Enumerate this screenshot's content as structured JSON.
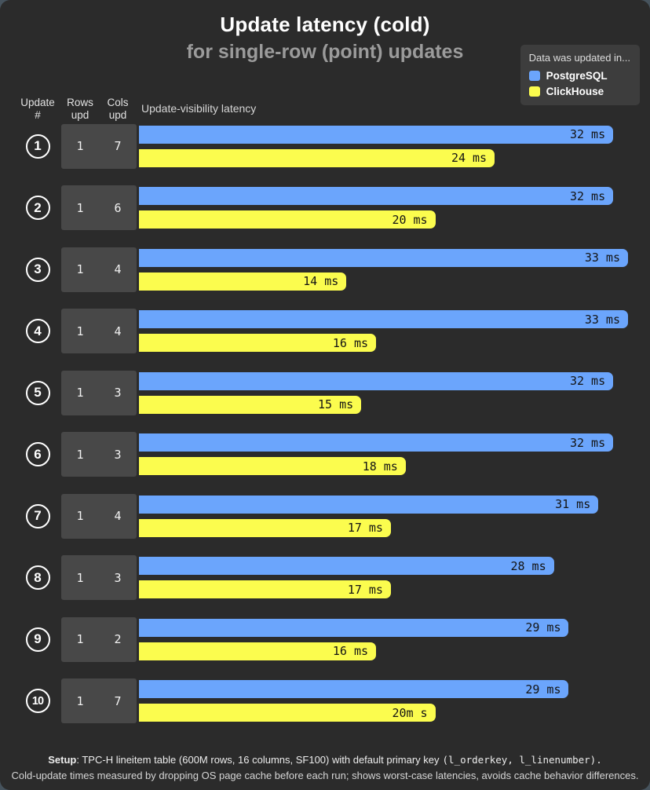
{
  "title": "Update latency (cold)",
  "subtitle": "for single-row (point) updates",
  "colors": {
    "postgresql": "#6ba5fc",
    "clickhouse": "#fbfc4e",
    "card_background": "#2b2b2b",
    "cell_background": "#484848",
    "legend_background": "#3d3d3d",
    "outer_background": "#46535d"
  },
  "legend": {
    "title": "Data was updated in...",
    "items": [
      {
        "label": "PostgreSQL",
        "color": "#6ba5fc"
      },
      {
        "label": "ClickHouse",
        "color": "#fbfc4e"
      }
    ]
  },
  "columns": {
    "update": [
      "Update",
      "#"
    ],
    "rows": [
      "Rows",
      "upd"
    ],
    "cols": [
      "Cols",
      "upd"
    ],
    "latency": "Update-visibility latency"
  },
  "rows": [
    {
      "num": "1",
      "rows_upd": "1",
      "cols_upd": "7",
      "pg_value": 32,
      "pg_label": "32 ms",
      "ch_value": 24,
      "ch_label": "24 ms"
    },
    {
      "num": "2",
      "rows_upd": "1",
      "cols_upd": "6",
      "pg_value": 32,
      "pg_label": "32 ms",
      "ch_value": 20,
      "ch_label": "20 ms"
    },
    {
      "num": "3",
      "rows_upd": "1",
      "cols_upd": "4",
      "pg_value": 33,
      "pg_label": "33 ms",
      "ch_value": 14,
      "ch_label": "14 ms"
    },
    {
      "num": "4",
      "rows_upd": "1",
      "cols_upd": "4",
      "pg_value": 33,
      "pg_label": "33 ms",
      "ch_value": 16,
      "ch_label": "16 ms"
    },
    {
      "num": "5",
      "rows_upd": "1",
      "cols_upd": "3",
      "pg_value": 32,
      "pg_label": "32 ms",
      "ch_value": 15,
      "ch_label": "15 ms"
    },
    {
      "num": "6",
      "rows_upd": "1",
      "cols_upd": "3",
      "pg_value": 32,
      "pg_label": "32 ms",
      "ch_value": 18,
      "ch_label": "18 ms"
    },
    {
      "num": "7",
      "rows_upd": "1",
      "cols_upd": "4",
      "pg_value": 31,
      "pg_label": "31 ms",
      "ch_value": 17,
      "ch_label": "17 ms"
    },
    {
      "num": "8",
      "rows_upd": "1",
      "cols_upd": "3",
      "pg_value": 28,
      "pg_label": "28 ms",
      "ch_value": 17,
      "ch_label": "17 ms"
    },
    {
      "num": "9",
      "rows_upd": "1",
      "cols_upd": "2",
      "pg_value": 29,
      "pg_label": "29 ms",
      "ch_value": 16,
      "ch_label": "16 ms"
    },
    {
      "num": "10",
      "rows_upd": "1",
      "cols_upd": "7",
      "pg_value": 29,
      "pg_label": "29 ms",
      "ch_value": 20,
      "ch_label": "20m s"
    }
  ],
  "chart_data": {
    "type": "bar",
    "orientation": "horizontal",
    "title": "Update latency (cold)",
    "subtitle": "for single-row (point) updates",
    "unit": "ms",
    "xlim": [
      0,
      33
    ],
    "grid": false,
    "legend_position": "top-right",
    "categories": [
      "1",
      "2",
      "3",
      "4",
      "5",
      "6",
      "7",
      "8",
      "9",
      "10"
    ],
    "series": [
      {
        "name": "PostgreSQL",
        "color": "#6ba5fc",
        "values": [
          32,
          32,
          33,
          33,
          32,
          32,
          31,
          28,
          29,
          29
        ]
      },
      {
        "name": "ClickHouse",
        "color": "#fbfc4e",
        "values": [
          24,
          20,
          14,
          16,
          15,
          18,
          17,
          17,
          16,
          20
        ]
      }
    ],
    "bar_labels": {
      "PostgreSQL": [
        "32 ms",
        "32 ms",
        "33 ms",
        "33 ms",
        "32 ms",
        "32 ms",
        "31 ms",
        "28 ms",
        "29 ms",
        "29 ms"
      ],
      "ClickHouse": [
        "24 ms",
        "20 ms",
        "14 ms",
        "16 ms",
        "15 ms",
        "18 ms",
        "17 ms",
        "17 ms",
        "16 ms",
        "20m s"
      ]
    },
    "rows_upd": [
      1,
      1,
      1,
      1,
      1,
      1,
      1,
      1,
      1,
      1
    ],
    "cols_upd": [
      7,
      6,
      4,
      4,
      3,
      3,
      4,
      3,
      2,
      7
    ]
  },
  "footer": {
    "setup_label": "Setup",
    "setup_text": ": TPC-H lineitem table (600M rows, 16 columns, SF100) with default primary key",
    "setup_mono": "(l_orderkey, l_linenumber).",
    "line2": "Cold-update times measured by dropping OS page cache before each run; shows worst-case latencies, avoids cache behavior differences."
  }
}
